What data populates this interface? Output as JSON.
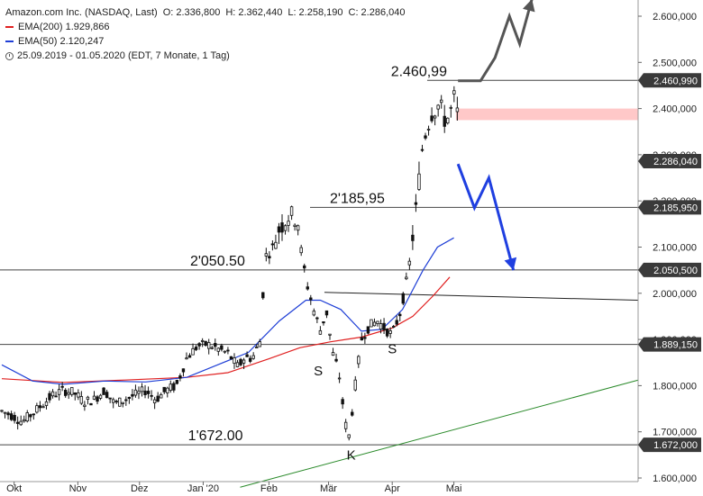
{
  "header": {
    "instrument": "Amazon.com Inc. (NASDAQ, Last)",
    "open": "O: 2.336,800",
    "high": "H: 2.362,440",
    "low": "L: 2.258,190",
    "close": "C: 2.286,040",
    "ema200": "EMA(200)  1.929,866",
    "ema50": "EMA(50)  2.120,247",
    "range": "25.09.2019 - 01.05.2020   (EDT, 7 Monate, 1 Tag)"
  },
  "colors": {
    "ema200": "#e02020",
    "ema50": "#1f3fd6",
    "candle": "#111111",
    "trendline": "#2a8a2a",
    "forecast_down": "#1f3fe0",
    "forecast_up": "#555555",
    "resistance_zone": "#ffc8c8"
  },
  "chart_data": {
    "type": "candlestick",
    "ylim": [
      1580,
      2660
    ],
    "y_ticks": [
      "1.600,000",
      "1.700,000",
      "1.800,000",
      "1.900,000",
      "2.000,000",
      "2.100,000",
      "2.200,000",
      "2.300,000",
      "2.400,000",
      "2.500,000",
      "2.600,000"
    ],
    "y_tick_values": [
      1600,
      1700,
      1800,
      1900,
      2000,
      2100,
      2200,
      2300,
      2400,
      2500,
      2600
    ],
    "x_ticks": [
      "Okt",
      "Nov",
      "Dez",
      "Jan '20",
      "Feb",
      "Mär",
      "Apr",
      "Mai"
    ],
    "x_tick_days": [
      6,
      37,
      67,
      98,
      130,
      159,
      190,
      220
    ],
    "total_days": 262,
    "levels": [
      {
        "value": 2460.99,
        "tag": "2.460,990",
        "label": "2.460,99"
      },
      {
        "value": 2185.95,
        "tag": "2.185,950",
        "label": "2'185,95"
      },
      {
        "value": 2050.5,
        "tag": "2.050,500",
        "label": "2'050.50"
      },
      {
        "value": 1889.15,
        "tag": "1.889,150",
        "label": ""
      },
      {
        "value": 1672.0,
        "tag": "1.672,000",
        "label": "1'672.00"
      }
    ],
    "last_price": {
      "value": 2286.04,
      "tag": "2.286,040"
    },
    "resistance_zone": [
      2375,
      2400
    ],
    "neckline": {
      "start": [
        157,
        2002
      ],
      "end": [
        262,
        1985
      ]
    },
    "trendline": {
      "start": [
        116,
        1580
      ],
      "end": [
        262,
        1812
      ]
    },
    "pattern_labels": [
      {
        "text": "S",
        "day": 154,
        "value": 1822
      },
      {
        "text": "K",
        "day": 170,
        "value": 1640
      },
      {
        "text": "S",
        "day": 190,
        "value": 1870
      }
    ],
    "ema200_series": [
      [
        0,
        1815
      ],
      [
        30,
        1807
      ],
      [
        60,
        1812
      ],
      [
        90,
        1818
      ],
      [
        110,
        1828
      ],
      [
        130,
        1858
      ],
      [
        145,
        1882
      ],
      [
        160,
        1895
      ],
      [
        175,
        1905
      ],
      [
        190,
        1925
      ],
      [
        200,
        1950
      ],
      [
        210,
        1995
      ],
      [
        218,
        2035
      ]
    ],
    "ema50_series": [
      [
        0,
        1845
      ],
      [
        15,
        1810
      ],
      [
        30,
        1803
      ],
      [
        50,
        1810
      ],
      [
        70,
        1808
      ],
      [
        90,
        1818
      ],
      [
        105,
        1845
      ],
      [
        120,
        1872
      ],
      [
        135,
        1940
      ],
      [
        148,
        1985
      ],
      [
        155,
        1985
      ],
      [
        165,
        1965
      ],
      [
        175,
        1918
      ],
      [
        185,
        1922
      ],
      [
        195,
        1965
      ],
      [
        205,
        2050
      ],
      [
        212,
        2100
      ],
      [
        220,
        2120
      ]
    ],
    "forecast_down": [
      [
        222,
        2280
      ],
      [
        230,
        2185
      ],
      [
        237,
        2250
      ],
      [
        249,
        2050
      ]
    ],
    "forecast_up": [
      [
        222,
        2460
      ],
      [
        233,
        2460
      ],
      [
        240,
        2510
      ],
      [
        247,
        2600
      ],
      [
        252,
        2540
      ],
      [
        258,
        2637
      ]
    ],
    "candles_anchor": [
      [
        0,
        1745
      ],
      [
        5,
        1735
      ],
      [
        10,
        1722
      ],
      [
        15,
        1740
      ],
      [
        20,
        1760
      ],
      [
        25,
        1780
      ],
      [
        30,
        1790
      ],
      [
        35,
        1785
      ],
      [
        40,
        1765
      ],
      [
        45,
        1770
      ],
      [
        50,
        1790
      ],
      [
        55,
        1760
      ],
      [
        60,
        1770
      ],
      [
        65,
        1780
      ],
      [
        70,
        1790
      ],
      [
        75,
        1770
      ],
      [
        80,
        1790
      ],
      [
        85,
        1800
      ],
      [
        90,
        1860
      ],
      [
        95,
        1885
      ],
      [
        100,
        1890
      ],
      [
        105,
        1880
      ],
      [
        110,
        1870
      ],
      [
        115,
        1840
      ],
      [
        118,
        1860
      ],
      [
        122,
        1860
      ],
      [
        126,
        1900
      ],
      [
        128,
        2080
      ],
      [
        131,
        2090
      ],
      [
        135,
        2140
      ],
      [
        140,
        2170
      ],
      [
        144,
        2160
      ],
      [
        146,
        2080
      ],
      [
        149,
        2010
      ],
      [
        152,
        1960
      ],
      [
        155,
        1920
      ],
      [
        158,
        1960
      ],
      [
        161,
        1870
      ],
      [
        164,
        1830
      ],
      [
        167,
        1720
      ],
      [
        169,
        1690
      ],
      [
        172,
        1800
      ],
      [
        175,
        1900
      ],
      [
        179,
        1930
      ],
      [
        183,
        1940
      ],
      [
        187,
        1920
      ],
      [
        190,
        1910
      ],
      [
        194,
        1960
      ],
      [
        198,
        2050
      ],
      [
        202,
        2200
      ],
      [
        205,
        2330
      ],
      [
        209,
        2390
      ],
      [
        213,
        2410
      ],
      [
        216,
        2370
      ],
      [
        219,
        2400
      ],
      [
        221,
        2440
      ],
      [
        223,
        2286
      ]
    ]
  }
}
